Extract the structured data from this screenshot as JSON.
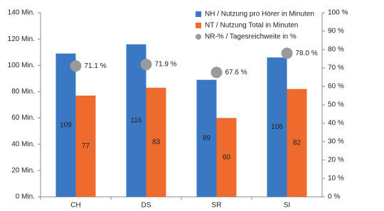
{
  "chart_data": {
    "type": "bar",
    "categories": [
      "CH",
      "DS",
      "SR",
      "SI"
    ],
    "series": [
      {
        "name": "NH / Nutzung pro Hörer in Minuten",
        "color": "#3a78c3",
        "values": [
          109,
          116,
          89,
          106
        ]
      },
      {
        "name": "NT / Nutzung Total in Minuten",
        "color": "#ee6b2d",
        "values": [
          77,
          83,
          60,
          82
        ]
      },
      {
        "name": "NR-% / Tagesreichweite in %",
        "color": "#9a9a9a",
        "type": "scatter",
        "axis": "y2",
        "values": [
          71.1,
          71.9,
          67.6,
          78
        ],
        "value_labels": [
          "71.1 %",
          "71.9 %",
          "67.6 %",
          "78.0 %"
        ]
      }
    ],
    "ylim": [
      0,
      140
    ],
    "yticks": [
      {
        "value": 0,
        "label": "0 Min."
      },
      {
        "value": 20,
        "label": "20 Min."
      },
      {
        "value": 40,
        "label": "40 Min."
      },
      {
        "value": 60,
        "label": "60 Min."
      },
      {
        "value": 80,
        "label": "80 Min."
      },
      {
        "value": 100,
        "label": "100 Min."
      },
      {
        "value": 120,
        "label": "120 Min."
      },
      {
        "value": 140,
        "label": "140 Min."
      }
    ],
    "y2lim": [
      0,
      100
    ],
    "y2ticks": [
      {
        "value": 0,
        "label": "0 %"
      },
      {
        "value": 10,
        "label": "10 %"
      },
      {
        "value": 20,
        "label": "20 %"
      },
      {
        "value": 30,
        "label": "30 %"
      },
      {
        "value": 40,
        "label": "40 %"
      },
      {
        "value": 50,
        "label": "50 %"
      },
      {
        "value": 60,
        "label": "60 %"
      },
      {
        "value": 70,
        "label": "70 %"
      },
      {
        "value": 80,
        "label": "80 %"
      },
      {
        "value": 90,
        "label": "90 %"
      },
      {
        "value": 100,
        "label": "100 %"
      }
    ],
    "grid": false,
    "legend": "top-right"
  }
}
